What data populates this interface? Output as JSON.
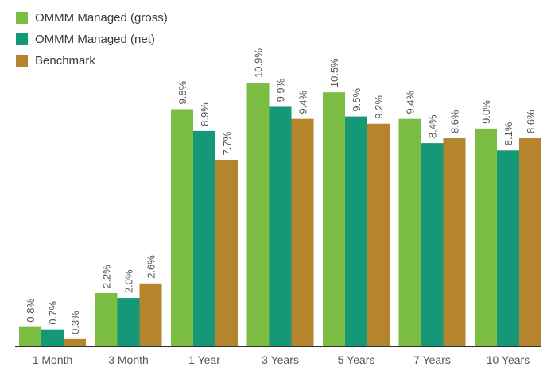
{
  "chart_data": {
    "type": "bar",
    "categories": [
      "1 Month",
      "3 Month",
      "1 Year",
      "3 Years",
      "5 Years",
      "7 Years",
      "10 Years"
    ],
    "series": [
      {
        "name": "OMMM Managed (gross)",
        "color": "#7bbd42",
        "values": [
          0.8,
          2.2,
          9.8,
          10.9,
          10.5,
          9.4,
          9.0
        ],
        "labels": [
          "0.8%",
          "2.2%",
          "9.8%",
          "10.9%",
          "10.5%",
          "9.4%",
          "9.0%"
        ]
      },
      {
        "name": "OMMM Managed (net)",
        "color": "#159877",
        "values": [
          0.7,
          2.0,
          8.9,
          9.9,
          9.5,
          8.4,
          8.1
        ],
        "labels": [
          "0.7%",
          "2.0%",
          "8.9%",
          "9.9%",
          "9.5%",
          "8.4%",
          "8.1%"
        ]
      },
      {
        "name": "Benchmark",
        "color": "#b5852e",
        "values": [
          0.3,
          2.6,
          7.7,
          9.4,
          9.2,
          8.6,
          8.6
        ],
        "labels": [
          "0.3%",
          "2.6%",
          "7.7%",
          "9.4%",
          "9.2%",
          "8.6%",
          "8.6%"
        ]
      }
    ],
    "ylim": [
      0,
      13
    ],
    "grid": false,
    "legend_position": "top-left",
    "label_color": "#555555",
    "axis_color": "#333333"
  }
}
